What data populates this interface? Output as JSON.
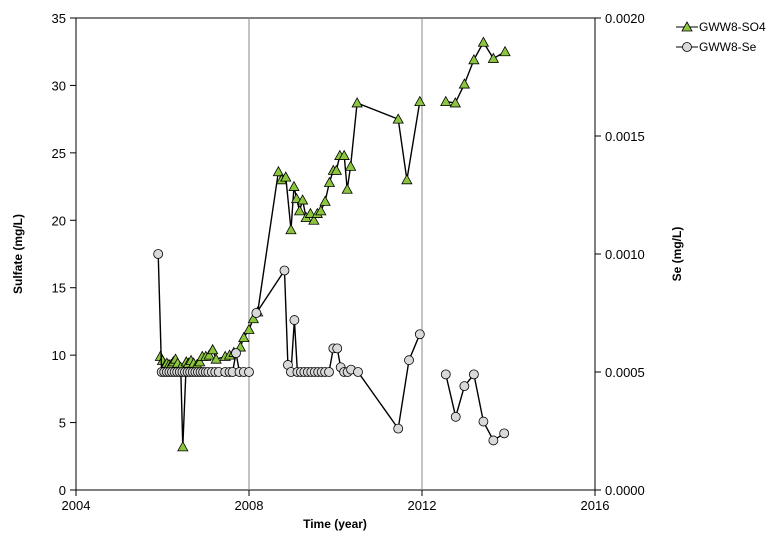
{
  "chart_data": {
    "type": "line",
    "title": "",
    "xlabel": "Time (year)",
    "ylabel": "Sulfate (mg/L)",
    "y2label": "Se (mg/L)",
    "xlim": [
      2004,
      2016
    ],
    "ylim": [
      0,
      35
    ],
    "y2lim": [
      0,
      0.002
    ],
    "x_ticks": [
      "2004",
      "2008",
      "2012",
      "2016"
    ],
    "y_ticks": [
      "0",
      "5",
      "10",
      "15",
      "20",
      "25",
      "30",
      "35"
    ],
    "y2_ticks": [
      "0.0000",
      "0.0005",
      "0.0010",
      "0.0015",
      "0.0020"
    ],
    "vertical_reference_lines": [
      2008,
      2012
    ],
    "grid": false,
    "legend_position": "top-right",
    "series": [
      {
        "name": "GWW8-SO4",
        "axis": "left",
        "marker": "triangle",
        "color": "#8cc63f",
        "segments": [
          [
            [
              2005.95,
              9.9
            ],
            [
              2006.0,
              9.6
            ],
            [
              2006.05,
              9.2
            ],
            [
              2006.1,
              9.4
            ],
            [
              2006.15,
              9.3
            ],
            [
              2006.2,
              9.3
            ],
            [
              2006.25,
              9.5
            ],
            [
              2006.3,
              9.7
            ],
            [
              2006.35,
              9.4
            ],
            [
              2006.42,
              9.1
            ],
            [
              2006.47,
              3.2
            ],
            [
              2006.55,
              9.5
            ],
            [
              2006.6,
              9.4
            ],
            [
              2006.66,
              9.6
            ],
            [
              2006.72,
              9.4
            ],
            [
              2006.8,
              9.3
            ],
            [
              2006.86,
              9.5
            ],
            [
              2006.92,
              9.9
            ],
            [
              2007.0,
              9.9
            ],
            [
              2007.08,
              10.0
            ],
            [
              2007.16,
              10.4
            ],
            [
              2007.24,
              9.7
            ],
            [
              2007.45,
              9.9
            ],
            [
              2007.55,
              10.0
            ],
            [
              2007.65,
              10.2
            ],
            [
              2007.8,
              10.6
            ],
            [
              2007.88,
              11.3
            ],
            [
              2008.0,
              11.9
            ],
            [
              2008.1,
              12.7
            ],
            [
              2008.2,
              13.2
            ],
            [
              2008.68,
              23.6
            ],
            [
              2008.75,
              23.0
            ],
            [
              2008.85,
              23.2
            ],
            [
              2008.97,
              19.3
            ],
            [
              2009.04,
              22.5
            ],
            [
              2009.1,
              21.6
            ],
            [
              2009.17,
              20.7
            ],
            [
              2009.24,
              21.5
            ],
            [
              2009.32,
              20.2
            ],
            [
              2009.42,
              20.5
            ],
            [
              2009.5,
              20.0
            ],
            [
              2009.58,
              20.5
            ],
            [
              2009.66,
              20.7
            ],
            [
              2009.76,
              21.4
            ],
            [
              2009.86,
              22.8
            ],
            [
              2009.95,
              23.7
            ],
            [
              2010.02,
              23.7
            ],
            [
              2010.1,
              24.8
            ],
            [
              2010.2,
              24.8
            ],
            [
              2010.27,
              22.3
            ],
            [
              2010.35,
              24.0
            ],
            [
              2010.5,
              28.7
            ],
            [
              2011.45,
              27.5
            ],
            [
              2011.65,
              23.0
            ],
            [
              2011.95,
              28.8
            ]
          ],
          [
            [
              2012.55,
              28.8
            ],
            [
              2012.77,
              28.7
            ],
            [
              2012.98,
              30.1
            ],
            [
              2013.2,
              31.9
            ],
            [
              2013.42,
              33.2
            ],
            [
              2013.65,
              32.0
            ],
            [
              2013.92,
              32.5
            ]
          ]
        ]
      },
      {
        "name": "GWW8-Se",
        "axis": "right",
        "marker": "circle",
        "color": "#d9d9d9",
        "segments": [
          [
            [
              2005.9,
              0.001
            ],
            [
              2005.98,
              0.0005
            ],
            [
              2006.04,
              0.0005
            ],
            [
              2006.1,
              0.0005
            ],
            [
              2006.16,
              0.0005
            ],
            [
              2006.22,
              0.0005
            ],
            [
              2006.28,
              0.0005
            ],
            [
              2006.34,
              0.0005
            ],
            [
              2006.4,
              0.0005
            ],
            [
              2006.46,
              0.0005
            ],
            [
              2006.52,
              0.0005
            ],
            [
              2006.58,
              0.0005
            ],
            [
              2006.64,
              0.0005
            ],
            [
              2006.7,
              0.0005
            ],
            [
              2006.76,
              0.0005
            ],
            [
              2006.82,
              0.0005
            ],
            [
              2006.88,
              0.0005
            ],
            [
              2006.94,
              0.0005
            ],
            [
              2007.0,
              0.0005
            ],
            [
              2007.06,
              0.0005
            ],
            [
              2007.14,
              0.0005
            ],
            [
              2007.22,
              0.0005
            ],
            [
              2007.3,
              0.0005
            ],
            [
              2007.45,
              0.0005
            ],
            [
              2007.55,
              0.0005
            ],
            [
              2007.62,
              0.0005
            ],
            [
              2007.7,
              0.00058
            ],
            [
              2007.78,
              0.0005
            ],
            [
              2007.88,
              0.0005
            ],
            [
              2008.0,
              0.0005
            ]
          ],
          [
            [
              2008.17,
              0.00075
            ],
            [
              2008.82,
              0.00093
            ],
            [
              2008.9,
              0.00053
            ],
            [
              2008.97,
              0.0005
            ],
            [
              2009.05,
              0.00072
            ],
            [
              2009.12,
              0.0005
            ],
            [
              2009.2,
              0.0005
            ],
            [
              2009.28,
              0.0005
            ],
            [
              2009.36,
              0.0005
            ],
            [
              2009.44,
              0.0005
            ],
            [
              2009.52,
              0.0005
            ],
            [
              2009.6,
              0.0005
            ],
            [
              2009.68,
              0.0005
            ],
            [
              2009.76,
              0.0005
            ],
            [
              2009.85,
              0.0005
            ],
            [
              2009.95,
              0.0006
            ],
            [
              2010.04,
              0.0006
            ],
            [
              2010.12,
              0.00052
            ],
            [
              2010.2,
              0.0005
            ],
            [
              2010.28,
              0.0005
            ],
            [
              2010.36,
              0.00051
            ],
            [
              2010.52,
              0.0005
            ],
            [
              2011.45,
              0.00026
            ],
            [
              2011.7,
              0.00055
            ],
            [
              2011.95,
              0.00066
            ]
          ],
          [
            [
              2012.55,
              0.00049
            ],
            [
              2012.78,
              0.00031
            ],
            [
              2012.98,
              0.00044
            ],
            [
              2013.2,
              0.00049
            ],
            [
              2013.42,
              0.00029
            ],
            [
              2013.65,
              0.00021
            ],
            [
              2013.9,
              0.00024
            ]
          ]
        ]
      }
    ]
  }
}
